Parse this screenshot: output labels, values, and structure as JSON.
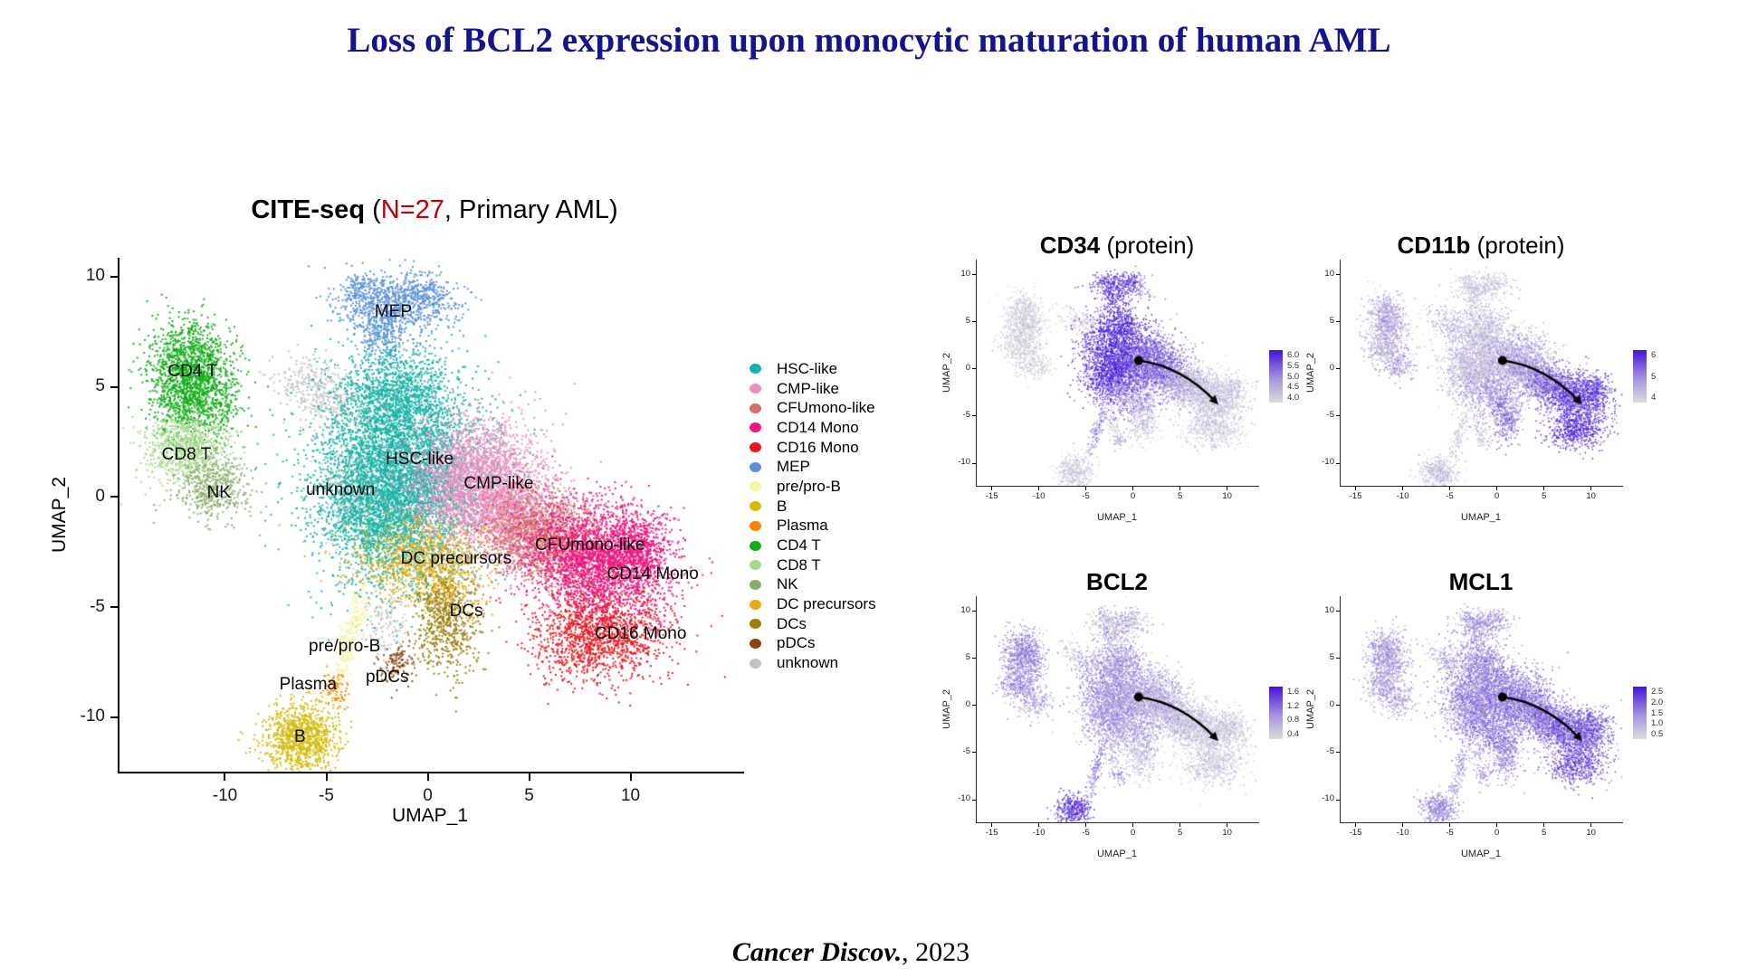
{
  "title": {
    "text": "Loss of BCL2 expression upon monocytic maturation of human AML"
  },
  "citation": {
    "journal": "Cancer Discov.",
    "year_suffix": ", 2023"
  },
  "colors": {
    "title_navy": "#14148c",
    "subtitle_red": "#c00000",
    "feature_high": "#4514da",
    "feature_mid": "#a795dc",
    "feature_low": "#dcdcdc",
    "axis": "#000000"
  },
  "legend": {
    "items": [
      "HSC-like",
      "CMP-like",
      "CFUmono-like",
      "CD14 Mono",
      "CD16 Mono",
      "MEP",
      "pre/pro-B",
      "B",
      "Plasma",
      "CD4 T",
      "CD8 T",
      "NK",
      "DC precursors",
      "DCs",
      "pDCs",
      "unknown"
    ]
  },
  "chart_data": [
    {
      "id": "main_umap",
      "type": "scatter",
      "title_bold": "CITE-seq",
      "title_open": " (",
      "title_n": "N=27",
      "title_close": ", Primary AML)",
      "xlabel": "UMAP_1",
      "ylabel": "UMAP_2",
      "xlim": [
        -15.2,
        15.6
      ],
      "ylim_top": 10.85,
      "ylim_bottom": -12.45,
      "xticks": [
        -10,
        -5,
        0,
        5,
        10
      ],
      "yticks": [
        10,
        5,
        0,
        -5,
        -10
      ],
      "clusters": [
        {
          "name": "unknown",
          "color": "#c3c3c3",
          "label": [
            -4.3,
            0.3
          ],
          "blobs": [
            [
              -5.3,
              4.8,
              1.35,
              0.65,
              420,
              -30
            ],
            [
              -3.9,
              0.2,
              0.75,
              1.25,
              300,
              0
            ],
            [
              -2.1,
              -5.6,
              0.5,
              0.9,
              140,
              0
            ]
          ]
        },
        {
          "name": "CD4 T",
          "color": "#12ad18",
          "label": [
            -11.6,
            5.7
          ],
          "blobs": [
            [
              -11.8,
              6.1,
              1.0,
              1.05,
              950,
              0
            ],
            [
              -11.5,
              4.5,
              1.05,
              0.95,
              850,
              0
            ]
          ]
        },
        {
          "name": "CD8 T",
          "color": "#a6da8a",
          "label": [
            -11.9,
            1.9
          ],
          "blobs": [
            [
              -12.0,
              2.3,
              1.05,
              0.8,
              800,
              0
            ]
          ]
        },
        {
          "name": "NK",
          "color": "#8bab6e",
          "label": [
            -10.3,
            0.2
          ],
          "blobs": [
            [
              -10.6,
              0.5,
              0.95,
              0.75,
              480,
              0
            ]
          ]
        },
        {
          "name": "MEP",
          "color": "#5a90d8",
          "label": [
            -1.7,
            8.4
          ],
          "blobs": [
            [
              -1.6,
              8.8,
              1.5,
              0.7,
              750,
              0
            ],
            [
              -2.3,
              7.6,
              0.65,
              0.85,
              260,
              0
            ],
            [
              -0.1,
              9.4,
              0.55,
              0.45,
              130,
              0
            ],
            [
              -3.3,
              9.5,
              0.5,
              0.35,
              90,
              0
            ]
          ]
        },
        {
          "name": "HSC-like",
          "color": "#17b3a6",
          "label": [
            -0.4,
            1.7
          ],
          "blobs": [
            [
              -1.4,
              1.0,
              2.05,
              2.25,
              5200,
              0
            ],
            [
              -1.7,
              4.7,
              1.25,
              1.15,
              950,
              0
            ],
            [
              -2.7,
              -0.9,
              1.1,
              1.3,
              650,
              0
            ]
          ]
        },
        {
          "name": "CMP-like",
          "color": "#ec8fc2",
          "label": [
            3.5,
            0.6
          ],
          "blobs": [
            [
              2.4,
              0.8,
              1.7,
              1.4,
              2600,
              0
            ],
            [
              4.0,
              -0.9,
              1.4,
              0.9,
              900,
              -20
            ]
          ]
        },
        {
          "name": "CFUmono-like",
          "color": "#d4716b",
          "label": [
            8.0,
            -2.2
          ],
          "blobs": [
            [
              5.6,
              -1.7,
              1.45,
              1.05,
              1500,
              -20
            ]
          ]
        },
        {
          "name": "CD14 Mono",
          "color": "#ee1580",
          "label": [
            11.1,
            -3.5
          ],
          "blobs": [
            [
              8.4,
              -2.9,
              1.75,
              1.3,
              2600,
              -15
            ],
            [
              10.4,
              -2.1,
              0.8,
              0.8,
              450,
              0
            ]
          ]
        },
        {
          "name": "CD16 Mono",
          "color": "#e9161c",
          "label": [
            10.5,
            -6.2
          ],
          "blobs": [
            [
              8.4,
              -6.3,
              1.6,
              1.0,
              1300,
              0
            ]
          ]
        },
        {
          "name": "DC precursors",
          "color": "#e3ad15",
          "label": [
            1.4,
            -2.8
          ],
          "blobs": [
            [
              -0.4,
              -2.7,
              1.7,
              0.9,
              800,
              0
            ],
            [
              0.7,
              -4.0,
              0.9,
              0.8,
              280,
              0
            ]
          ]
        },
        {
          "name": "DCs",
          "color": "#9a7d0b",
          "label": [
            1.9,
            -5.2
          ],
          "blobs": [
            [
              0.9,
              -5.6,
              0.8,
              1.15,
              620,
              0
            ]
          ]
        },
        {
          "name": "pDCs",
          "color": "#8a450f",
          "label": [
            -2.0,
            -8.2
          ],
          "blobs": [
            [
              -1.5,
              -7.5,
              0.4,
              0.45,
              110,
              0
            ]
          ]
        },
        {
          "name": "pre/pro-B",
          "color": "#f3f6a2",
          "label": [
            -4.1,
            -6.8
          ],
          "blobs": [
            [
              -3.9,
              -6.4,
              0.28,
              1.35,
              280,
              -18
            ]
          ]
        },
        {
          "name": "Plasma",
          "color": "#f28408",
          "label": [
            -5.9,
            -8.5
          ],
          "blobs": [
            [
              -4.6,
              -8.7,
              0.35,
              0.5,
              80,
              0
            ]
          ]
        },
        {
          "name": "B",
          "color": "#d4bc0e",
          "label": [
            -6.3,
            -10.9
          ],
          "blobs": [
            [
              -6.3,
              -10.9,
              0.9,
              0.8,
              1050,
              0
            ]
          ]
        }
      ]
    },
    {
      "id": "cd34",
      "type": "feature_scatter",
      "title_bold": "CD34",
      "title_normal": " (protein)",
      "xlabel": "UMAP_1",
      "ylabel": "UMAP_2",
      "xlim": [
        -16.6,
        13.4
      ],
      "ylim_top": 11.6,
      "ylim_bottom": -12.4,
      "xticks": [
        -15,
        -10,
        -5,
        0,
        5,
        10
      ],
      "yticks": [
        10,
        5,
        0,
        -5,
        -10
      ],
      "colorbar_ticks": [
        "6.0",
        "5.5",
        "5.0",
        "4.5",
        "4.0"
      ],
      "arrow": {
        "from": [
          0.6,
          0.9
        ],
        "control": [
          5.2,
          0.3
        ],
        "to": [
          8.8,
          -3.5
        ]
      },
      "expression": {
        "HSC-like": 0.92,
        "CMP-like": 0.6,
        "CFUmono-like": 0.3,
        "CD14 Mono": 0.12,
        "CD16 Mono": 0.1,
        "MEP": 0.8,
        "pre/pro-B": 0.5,
        "B": 0.08,
        "Plasma": 0.1,
        "CD4 T": 0.06,
        "CD8 T": 0.06,
        "NK": 0.06,
        "DC precursors": 0.35,
        "DCs": 0.12,
        "pDCs": 0.3,
        "unknown": 0.12
      }
    },
    {
      "id": "cd11b",
      "type": "feature_scatter",
      "title_bold": "CD11b",
      "title_normal": " (protein)",
      "xlabel": "UMAP_1",
      "ylabel": "UMAP_2",
      "xlim": [
        -16.6,
        13.4
      ],
      "ylim_top": 11.6,
      "ylim_bottom": -12.4,
      "xticks": [
        -15,
        -10,
        -5,
        0,
        5,
        10
      ],
      "yticks": [
        10,
        5,
        0,
        -5,
        -10
      ],
      "colorbar_ticks": [
        "6",
        "5",
        "4"
      ],
      "arrow": {
        "from": [
          0.6,
          0.9
        ],
        "control": [
          5.2,
          0.3
        ],
        "to": [
          8.8,
          -3.5
        ]
      },
      "expression": {
        "HSC-like": 0.2,
        "CMP-like": 0.35,
        "CFUmono-like": 0.55,
        "CD14 Mono": 0.8,
        "CD16 Mono": 0.95,
        "MEP": 0.12,
        "pre/pro-B": 0.08,
        "B": 0.15,
        "Plasma": 0.15,
        "CD4 T": 0.3,
        "CD8 T": 0.3,
        "NK": 0.4,
        "DC precursors": 0.45,
        "DCs": 0.6,
        "pDCs": 0.2,
        "unknown": 0.25
      }
    },
    {
      "id": "bcl2",
      "type": "feature_scatter",
      "title_bold": "BCL2",
      "title_normal": "",
      "xlabel": "UMAP_1",
      "ylabel": "UMAP_2",
      "xlim": [
        -16.6,
        13.4
      ],
      "ylim_top": 11.6,
      "ylim_bottom": -12.4,
      "xticks": [
        -15,
        -10,
        -5,
        0,
        5,
        10
      ],
      "yticks": [
        10,
        5,
        0,
        -5,
        -10
      ],
      "colorbar_ticks": [
        "1.6",
        "1.2",
        "0.8",
        "0.4"
      ],
      "arrow": {
        "from": [
          0.6,
          0.9
        ],
        "control": [
          5.2,
          0.3
        ],
        "to": [
          8.8,
          -3.5
        ]
      },
      "expression": {
        "HSC-like": 0.42,
        "CMP-like": 0.28,
        "CFUmono-like": 0.18,
        "CD14 Mono": 0.1,
        "CD16 Mono": 0.1,
        "MEP": 0.28,
        "pre/pro-B": 0.55,
        "B": 0.82,
        "Plasma": 0.3,
        "CD4 T": 0.5,
        "CD8 T": 0.45,
        "NK": 0.4,
        "DC precursors": 0.3,
        "DCs": 0.15,
        "pDCs": 0.5,
        "unknown": 0.25
      }
    },
    {
      "id": "mcl1",
      "type": "feature_scatter",
      "title_bold": "MCL1",
      "title_normal": "",
      "xlabel": "UMAP_1",
      "ylabel": "UMAP_2",
      "xlim": [
        -16.6,
        13.4
      ],
      "ylim_top": 11.6,
      "ylim_bottom": -12.4,
      "xticks": [
        -15,
        -10,
        -5,
        0,
        5,
        10
      ],
      "yticks": [
        10,
        5,
        0,
        -5,
        -10
      ],
      "colorbar_ticks": [
        "2.5",
        "2.0",
        "1.5",
        "1.0",
        "0.5"
      ],
      "arrow": {
        "from": [
          0.6,
          0.9
        ],
        "control": [
          5.2,
          0.3
        ],
        "to": [
          8.8,
          -3.5
        ]
      },
      "expression": {
        "HSC-like": 0.5,
        "CMP-like": 0.55,
        "CFUmono-like": 0.6,
        "CD14 Mono": 0.72,
        "CD16 Mono": 0.75,
        "MEP": 0.4,
        "pre/pro-B": 0.35,
        "B": 0.45,
        "Plasma": 0.35,
        "CD4 T": 0.38,
        "CD8 T": 0.35,
        "NK": 0.35,
        "DC precursors": 0.55,
        "DCs": 0.5,
        "pDCs": 0.4,
        "unknown": 0.3
      }
    }
  ]
}
